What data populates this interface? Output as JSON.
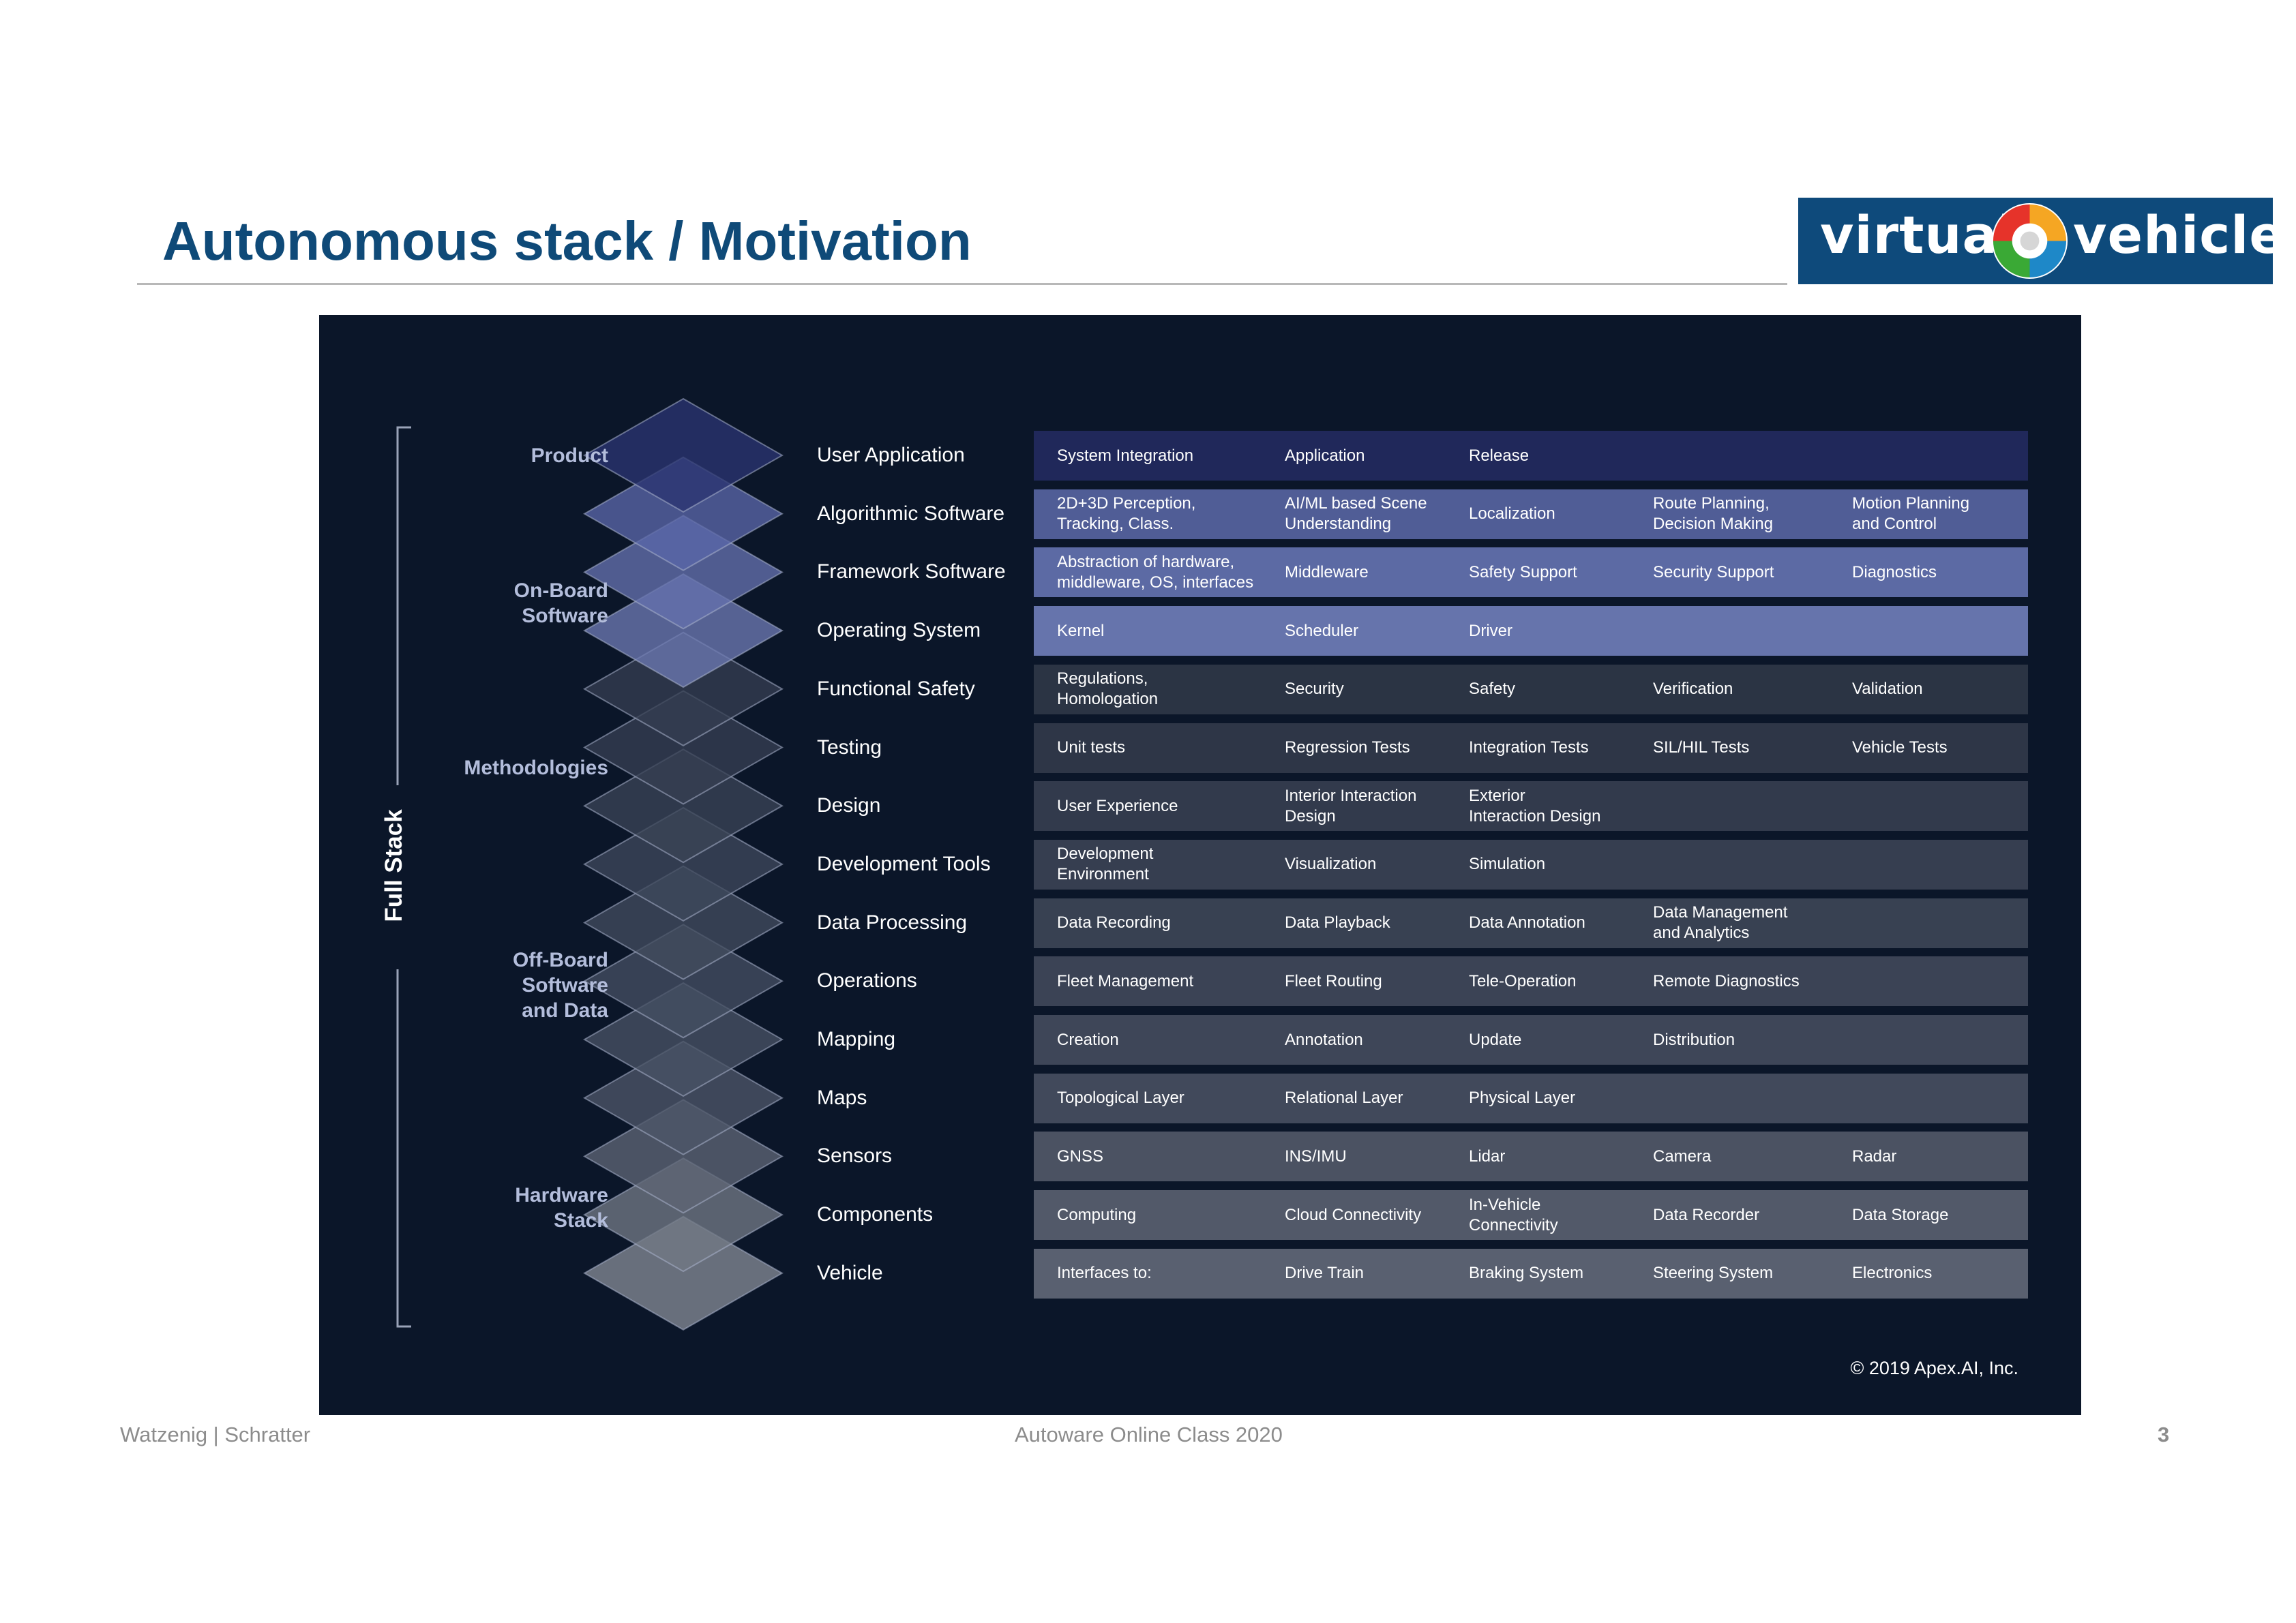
{
  "header": {
    "title": "Autonomous stack / Motivation",
    "logo_left_word": "virtual",
    "logo_right_word": "vehicle",
    "logo_colors": [
      "#e6332a",
      "#f5a623",
      "#3aa935",
      "#1e88c8"
    ]
  },
  "diagram": {
    "full_stack_label": "Full Stack",
    "categories": [
      {
        "lines": [
          "Product"
        ]
      },
      {
        "lines": [
          "On-Board",
          "Software"
        ]
      },
      {
        "lines": [
          "Methodologies"
        ]
      },
      {
        "lines": [
          "Off-Board",
          "Software",
          "and Data"
        ]
      },
      {
        "lines": [
          "Hardware",
          "Stack"
        ]
      }
    ],
    "layers": [
      {
        "name": "User Application",
        "row_color": "#20285a",
        "diamond_color": "#2a3471",
        "cells": [
          "System Integration",
          "Application",
          "Release",
          "",
          ""
        ]
      },
      {
        "name": "Algorithmic Software",
        "row_color": "#505d96",
        "diamond_color": "#5a67a8",
        "cells": [
          "2D+3D Perception,\nTracking, Class.",
          "AI/ML based Scene\nUnderstanding",
          "Localization",
          "Route Planning,\nDecision Making",
          "Motion Planning\nand Control"
        ]
      },
      {
        "name": "Framework Software",
        "row_color": "#5c6aa4",
        "diamond_color": "#6471ad",
        "cells": [
          "Abstraction of hardware,\nmiddleware, OS, interfaces",
          "Middleware",
          "Safety Support",
          "Security Support",
          "Diagnostics"
        ]
      },
      {
        "name": "Operating System",
        "row_color": "#6674ac",
        "diamond_color": "#6c79b1",
        "cells": [
          "Kernel",
          "Scheduler",
          "Driver",
          "",
          ""
        ]
      },
      {
        "name": "Functional Safety",
        "row_color": "#2b3444",
        "diamond_color": "#343e51",
        "cells": [
          "Regulations,\nHomologation",
          "Security",
          "Safety",
          "Verification",
          "Validation"
        ]
      },
      {
        "name": "Testing",
        "row_color": "#2e3647",
        "diamond_color": "#363f52",
        "cells": [
          "Unit tests",
          "Regression Tests",
          "Integration  Tests",
          "SIL/HIL  Tests",
          "Vehicle Tests"
        ]
      },
      {
        "name": "Design",
        "row_color": "#323a4c",
        "diamond_color": "#3a4456",
        "cells": [
          "User Experience",
          "Interior Interaction\nDesign",
          "Exterior\nInteraction Design",
          "",
          ""
        ]
      },
      {
        "name": "Development Tools",
        "row_color": "#363e50",
        "diamond_color": "#3e485b",
        "cells": [
          "Development\nEnvironment",
          "Visualization",
          "Simulation",
          "",
          ""
        ]
      },
      {
        "name": "Data Processing",
        "row_color": "#384152",
        "diamond_color": "#414b5e",
        "cells": [
          "Data Recording",
          "Data Playback",
          "Data Annotation",
          "Data Management\nand Analytics",
          ""
        ]
      },
      {
        "name": "Operations",
        "row_color": "#3b4355",
        "diamond_color": "#444e61",
        "cells": [
          "Fleet Management",
          "Fleet Routing",
          "Tele-Operation",
          "Remote Diagnostics",
          ""
        ]
      },
      {
        "name": "Mapping",
        "row_color": "#3e4658",
        "diamond_color": "#485264",
        "cells": [
          "Creation",
          "Annotation",
          "Update",
          "Distribution",
          ""
        ]
      },
      {
        "name": "Maps",
        "row_color": "#41495b",
        "diamond_color": "#4d5668",
        "cells": [
          "Topological Layer",
          "Relational Layer",
          "Physical Layer",
          "",
          ""
        ]
      },
      {
        "name": "Sensors",
        "row_color": "#4b5262",
        "diamond_color": "#5e6574",
        "cells": [
          "GNSS",
          "INS/IMU",
          "Lidar",
          "Camera",
          "Radar"
        ]
      },
      {
        "name": "Components",
        "row_color": "#525969",
        "diamond_color": "#717884",
        "cells": [
          "Computing",
          "Cloud Connectivity",
          "In-Vehicle\nConnectivity",
          "Data Recorder",
          "Data Storage"
        ]
      },
      {
        "name": "Vehicle",
        "row_color": "#596070",
        "diamond_color": "#838994",
        "cells": [
          "Interfaces to:",
          "Drive Train",
          "Braking System",
          "Steering System",
          "Electronics"
        ]
      }
    ],
    "copyright": "© 2019 Apex.AI, Inc."
  },
  "footer": {
    "authors": "Watzenig | Schratter",
    "course": "Autoware Online Class 2020",
    "page_number": "3"
  }
}
